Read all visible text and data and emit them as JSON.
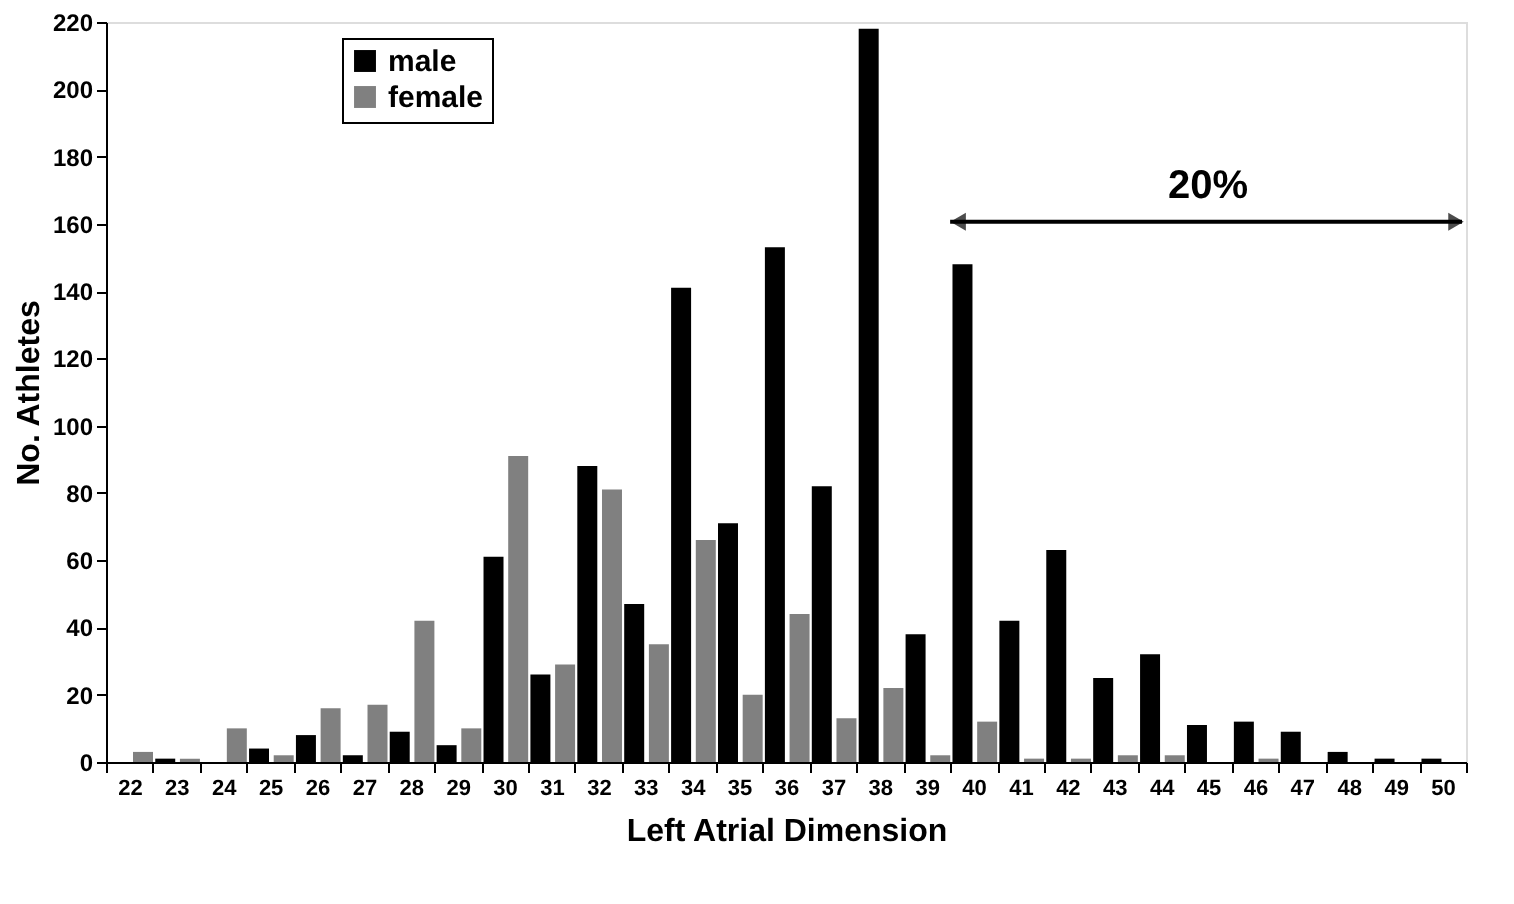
{
  "chart_data": {
    "type": "bar",
    "xlabel": "Left Atrial Dimension",
    "ylabel": "No. Athletes",
    "categories": [
      "22",
      "23",
      "24",
      "25",
      "26",
      "27",
      "28",
      "29",
      "30",
      "31",
      "32",
      "33",
      "34",
      "35",
      "36",
      "37",
      "38",
      "39",
      "40",
      "41",
      "42",
      "43",
      "44",
      "45",
      "46",
      "47",
      "48",
      "49",
      "50"
    ],
    "series": [
      {
        "name": "male",
        "color": "#000000",
        "values": [
          0,
          1,
          0,
          4,
          8,
          2,
          9,
          5,
          61,
          26,
          88,
          47,
          141,
          71,
          153,
          82,
          218,
          38,
          148,
          42,
          63,
          25,
          32,
          11,
          12,
          9,
          3,
          1,
          1
        ]
      },
      {
        "name": "female",
        "color": "#808080",
        "values": [
          3,
          1,
          10,
          2,
          16,
          17,
          42,
          10,
          91,
          29,
          81,
          35,
          66,
          20,
          44,
          13,
          22,
          2,
          12,
          1,
          1,
          2,
          2,
          0,
          1,
          0,
          0,
          0,
          0
        ]
      }
    ],
    "ylim": [
      0,
      220
    ],
    "yticks": [
      0,
      20,
      40,
      60,
      80,
      100,
      120,
      140,
      160,
      180,
      200,
      220
    ],
    "grid": false,
    "legend": "top left",
    "annotations": [
      "20%"
    ]
  }
}
